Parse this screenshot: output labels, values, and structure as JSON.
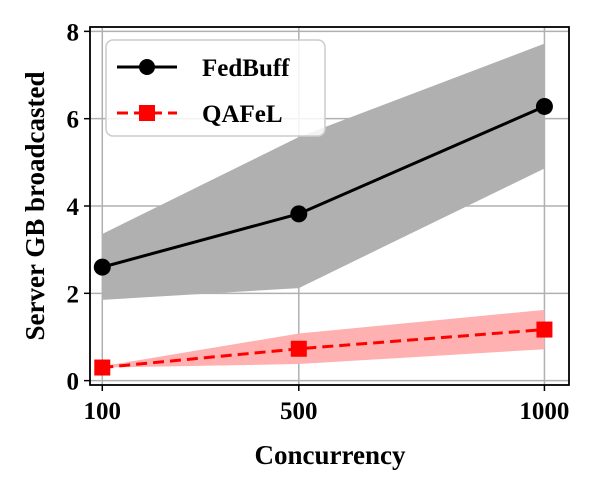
{
  "chart_data": {
    "type": "line",
    "xlabel": "Concurrency",
    "ylabel": "Server GB broadcasted",
    "categories": [
      "100",
      "500",
      "1000"
    ],
    "x": [
      100,
      500,
      1000
    ],
    "xlim": [
      75,
      1050
    ],
    "ylim": [
      -0.1,
      8.1
    ],
    "yticks": [
      0,
      2,
      4,
      6,
      8
    ],
    "grid": true,
    "legend_position": "top-left",
    "series": [
      {
        "name": "FedBuff",
        "values": [
          2.6,
          3.82,
          6.28
        ],
        "band_lower": [
          1.85,
          2.12,
          4.86
        ],
        "band_upper": [
          3.36,
          5.58,
          7.72
        ],
        "color": "#000000",
        "band_color": "#b0b0b0",
        "marker": "circle",
        "line_style": "solid"
      },
      {
        "name": "QAFeL",
        "values": [
          0.3,
          0.73,
          1.17
        ],
        "band_lower": [
          0.3,
          0.38,
          0.72
        ],
        "band_upper": [
          0.33,
          1.08,
          1.62
        ],
        "color": "#ff0000",
        "band_color": "#ffb0b0",
        "marker": "square",
        "line_style": "dashed"
      }
    ]
  }
}
